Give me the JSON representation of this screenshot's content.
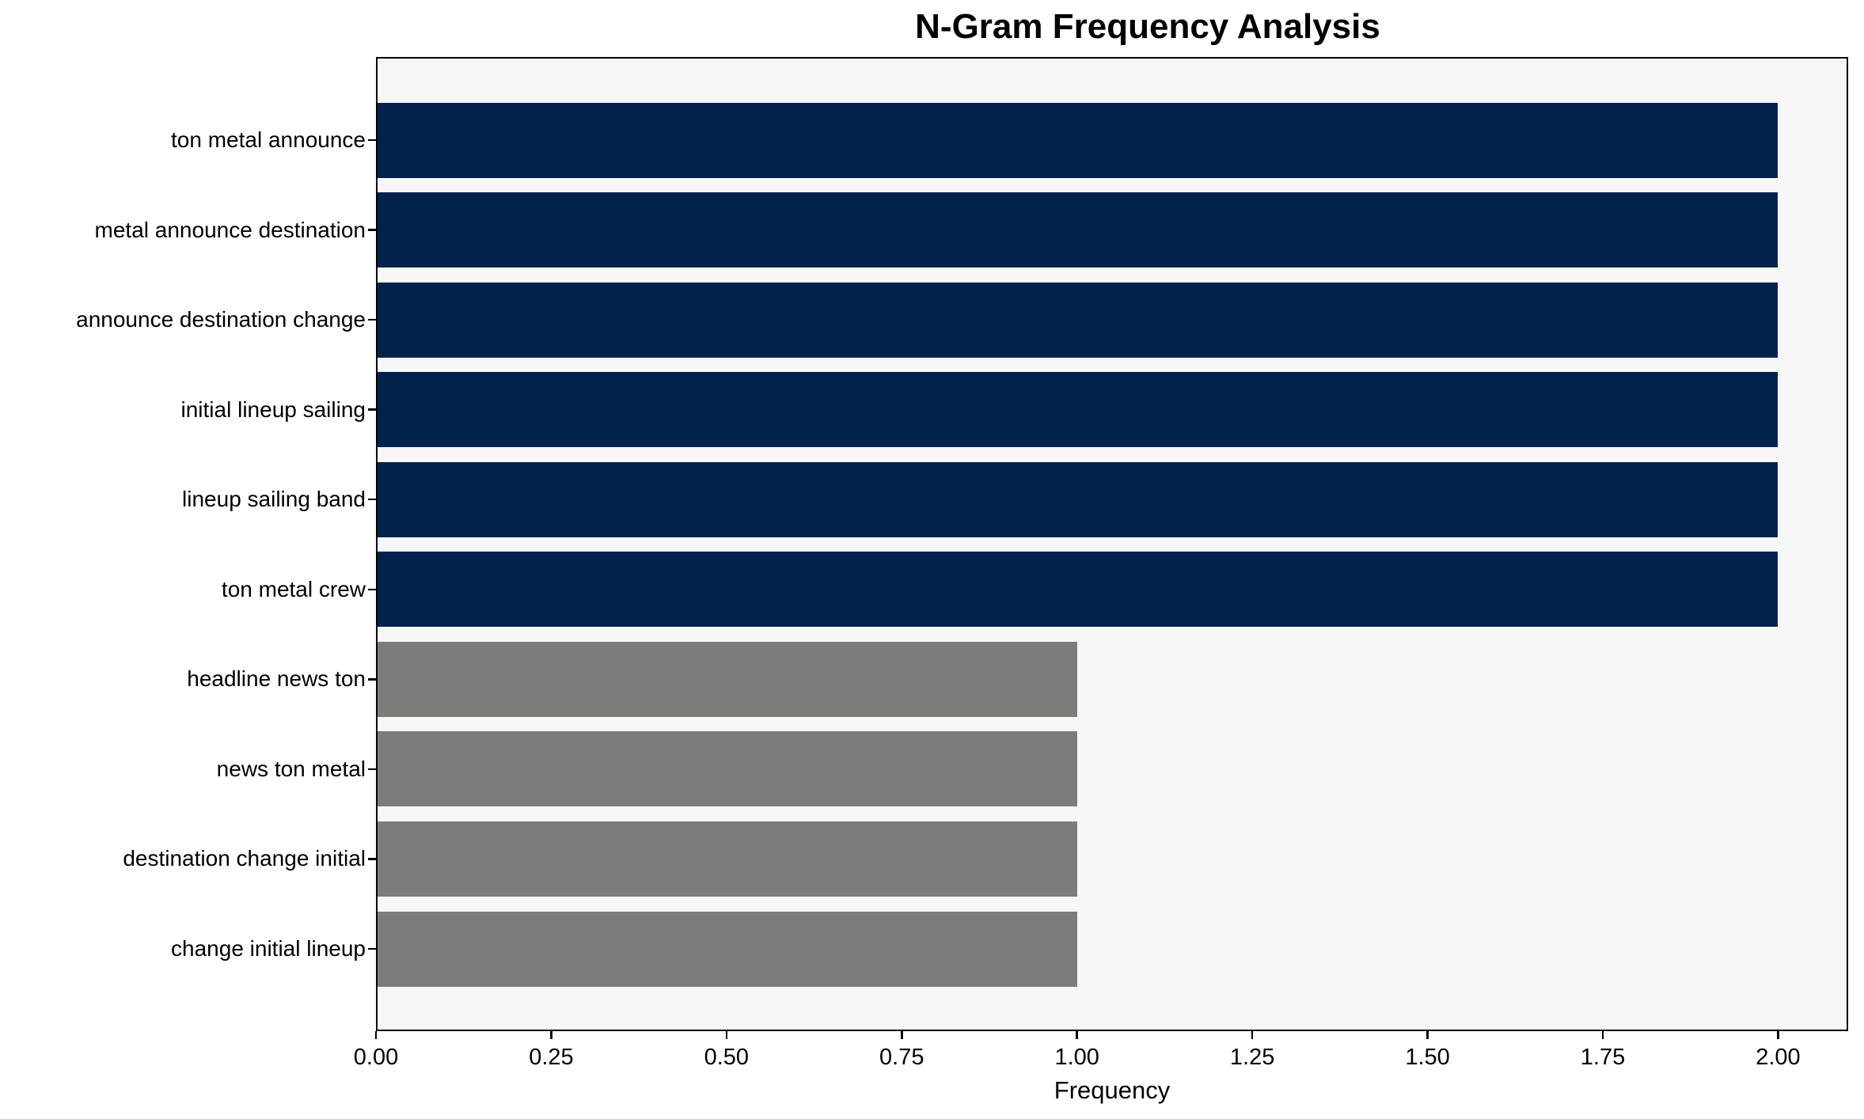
{
  "chart_data": {
    "type": "bar",
    "orientation": "horizontal",
    "title": "N-Gram Frequency Analysis",
    "xlabel": "Frequency",
    "ylabel": "",
    "categories": [
      "ton metal announce",
      "metal announce destination",
      "announce destination change",
      "initial lineup sailing",
      "lineup sailing band",
      "ton metal crew",
      "headline news ton",
      "news ton metal",
      "destination change initial",
      "change initial lineup"
    ],
    "values": [
      2,
      2,
      2,
      2,
      2,
      2,
      1,
      1,
      1,
      1
    ],
    "bar_colors": [
      "#02224c",
      "#02224c",
      "#02224c",
      "#02224c",
      "#02224c",
      "#02224c",
      "#7d7c79",
      "#7d7c79",
      "#7d7c79",
      "#7d7c79"
    ],
    "xlim": [
      0,
      2.1
    ],
    "xtick_values": [
      0,
      0.25,
      0.5,
      0.75,
      1.0,
      1.25,
      1.5,
      1.75,
      2.0
    ],
    "xtick_labels": [
      "0.00",
      "0.25",
      "0.50",
      "0.75",
      "1.00",
      "1.25",
      "1.50",
      "1.75",
      "2.00"
    ],
    "grid": false,
    "legend": null,
    "colors": {
      "high_frequency_bar": "#02224c",
      "low_frequency_bar": "#7d7c79",
      "plot_background": "#f7f7f7",
      "figure_background": "#ffffff",
      "spine": "#000000",
      "text": "#000000"
    }
  }
}
